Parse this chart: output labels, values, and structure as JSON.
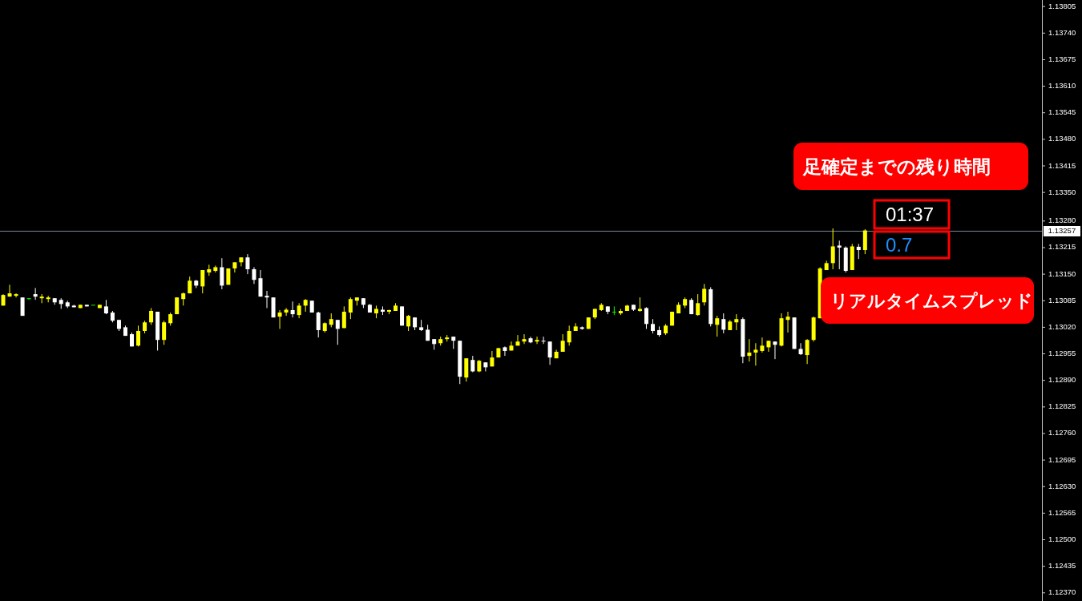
{
  "chart_data": {
    "type": "candlestick",
    "categories": [
      null,
      null,
      null,
      null,
      null,
      null,
      null,
      null,
      null,
      null,
      null,
      null,
      null,
      null,
      null,
      null,
      null,
      null,
      null,
      null,
      null,
      null,
      null,
      null,
      null,
      null,
      null,
      null,
      null,
      null,
      null,
      null,
      null,
      null,
      null,
      null,
      null,
      null,
      null,
      null,
      null,
      null,
      null,
      null,
      null,
      null,
      null,
      null,
      null,
      null,
      null,
      null,
      null,
      null,
      null,
      null,
      null,
      null,
      null,
      null,
      null,
      null,
      null,
      null,
      null,
      null,
      null,
      null,
      null,
      null,
      null,
      null,
      null,
      null,
      null,
      null,
      null,
      null,
      null,
      null,
      null,
      null,
      null,
      null,
      null,
      null,
      null,
      null,
      null,
      null,
      null,
      null,
      null,
      null,
      null,
      null,
      null,
      null,
      null,
      null,
      null,
      null,
      null,
      null,
      null,
      null,
      null,
      null,
      null,
      null,
      null,
      null,
      null,
      null,
      null,
      null,
      null,
      null,
      null,
      null,
      null,
      null,
      null,
      null,
      null,
      null,
      null,
      null,
      null,
      null,
      null,
      null,
      null,
      null,
      null,
      null,
      null,
      null,
      null,
      null,
      null,
      null,
      null,
      null,
      null,
      null,
      null,
      null,
      null,
      null,
      null,
      null,
      null,
      null,
      null,
      null,
      null,
      null,
      null,
      null,
      null,
      null
    ],
    "ohlc": [
      [
        1.13073,
        1.13101,
        1.13073,
        1.13099
      ],
      [
        1.13095,
        1.13124,
        1.13095,
        1.13103
      ],
      [
        1.13097,
        1.13103,
        1.13093,
        1.13101
      ],
      [
        1.13093,
        1.13093,
        1.13048,
        1.13048
      ],
      [
        1.13091,
        1.13091,
        1.13087,
        1.13091
      ],
      [
        1.13101,
        1.13116,
        1.13087,
        1.13095
      ],
      [
        1.13091,
        1.13101,
        1.13079,
        1.13095
      ],
      [
        1.13089,
        1.13097,
        1.13081,
        1.13093
      ],
      [
        1.13091,
        1.13091,
        1.13075,
        1.13081
      ],
      [
        1.13087,
        1.13091,
        1.13065,
        1.13077
      ],
      [
        1.13081,
        1.13085,
        1.13067,
        1.13071
      ],
      [
        1.13073,
        1.13075,
        1.13069,
        1.13069
      ],
      [
        1.13067,
        1.13075,
        1.13067,
        1.13075
      ],
      [
        1.13075,
        1.13075,
        1.13071,
        1.13071
      ],
      [
        1.13075,
        1.13075,
        1.13075,
        1.13075
      ],
      [
        1.13067,
        1.13075,
        1.13067,
        1.13075
      ],
      [
        1.13071,
        1.13087,
        1.13052,
        1.13054
      ],
      [
        1.13056,
        1.1306,
        1.13032,
        1.13036
      ],
      [
        1.13038,
        1.13038,
        1.13011,
        1.13016
      ],
      [
        1.1302,
        1.13024,
        1.12999,
        1.12999
      ],
      [
        1.13003,
        1.13007,
        1.12973,
        1.12973
      ],
      [
        1.12975,
        1.13024,
        1.12973,
        1.13011
      ],
      [
        1.13011,
        1.13036,
        1.13005,
        1.13032
      ],
      [
        1.13032,
        1.13067,
        1.13026,
        1.1306
      ],
      [
        1.13058,
        1.13058,
        1.12963,
        1.12989
      ],
      [
        1.12989,
        1.13036,
        1.12977,
        1.13032
      ],
      [
        1.1303,
        1.13056,
        1.13024,
        1.13052
      ],
      [
        1.13052,
        1.13093,
        1.13052,
        1.13093
      ],
      [
        1.13089,
        1.13105,
        1.13073,
        1.13103
      ],
      [
        1.13103,
        1.13144,
        1.13103,
        1.13134
      ],
      [
        1.13134,
        1.13136,
        1.13116,
        1.13122
      ],
      [
        1.1312,
        1.1316,
        1.13103,
        1.1316
      ],
      [
        1.13154,
        1.13173,
        1.13146,
        1.13162
      ],
      [
        1.13158,
        1.13171,
        1.13154,
        1.13167
      ],
      [
        1.13167,
        1.13189,
        1.13113,
        1.13122
      ],
      [
        1.13124,
        1.13164,
        1.13124,
        1.13164
      ],
      [
        1.13164,
        1.13179,
        1.13154,
        1.13179
      ],
      [
        1.13179,
        1.13191,
        1.13169,
        1.13191
      ],
      [
        1.13191,
        1.13199,
        1.1315,
        1.13162
      ],
      [
        1.13162,
        1.13167,
        1.13126,
        1.13136
      ],
      [
        1.1314,
        1.1316,
        1.13095,
        1.13095
      ],
      [
        1.13097,
        1.13109,
        1.13067,
        1.13093
      ],
      [
        1.13093,
        1.13093,
        1.13044,
        1.13044
      ],
      [
        1.13046,
        1.13062,
        1.13016,
        1.13056
      ],
      [
        1.13056,
        1.13067,
        1.13048,
        1.13063
      ],
      [
        1.13062,
        1.13083,
        1.13044,
        1.13052
      ],
      [
        1.1305,
        1.13079,
        1.13042,
        1.13073
      ],
      [
        1.13073,
        1.13089,
        1.13058,
        1.13087
      ],
      [
        1.13085,
        1.13085,
        1.13056,
        1.13056
      ],
      [
        1.13056,
        1.13058,
        1.12995,
        1.13013
      ],
      [
        1.13011,
        1.13032,
        1.13007,
        1.1303
      ],
      [
        1.13026,
        1.13054,
        1.1302,
        1.1304
      ],
      [
        1.13038,
        1.13038,
        1.12977,
        1.13016
      ],
      [
        1.13018,
        1.13071,
        1.13018,
        1.13058
      ],
      [
        1.13056,
        1.13093,
        1.1304,
        1.13089
      ],
      [
        1.13085,
        1.13093,
        1.13073,
        1.13093
      ],
      [
        1.13091,
        1.13091,
        1.13067,
        1.13075
      ],
      [
        1.13075,
        1.13077,
        1.13056,
        1.13056
      ],
      [
        1.13054,
        1.13073,
        1.13042,
        1.13065
      ],
      [
        1.13063,
        1.13071,
        1.1305,
        1.13058
      ],
      [
        1.13058,
        1.13063,
        1.13052,
        1.13062
      ],
      [
        1.1306,
        1.13079,
        1.1306,
        1.13073
      ],
      [
        1.13071,
        1.13071,
        1.13024,
        1.13024
      ],
      [
        1.13022,
        1.1305,
        1.13011,
        1.13048
      ],
      [
        1.13044,
        1.13044,
        1.13013,
        1.1302
      ],
      [
        1.1302,
        1.13038,
        1.13011,
        1.13013
      ],
      [
        1.13014,
        1.13026,
        1.12987,
        1.12987
      ],
      [
        1.12991,
        1.12991,
        1.12965,
        1.12979
      ],
      [
        1.12981,
        1.12997,
        1.12975,
        1.12991
      ],
      [
        1.12991,
        1.13001,
        1.12985,
        1.12995
      ],
      [
        1.12997,
        1.12997,
        1.12967,
        1.12987
      ],
      [
        1.12987,
        1.12987,
        1.12881,
        1.12899
      ],
      [
        1.12897,
        1.12944,
        1.12887,
        1.12944
      ],
      [
        1.1294,
        1.1295,
        1.1291,
        1.12912
      ],
      [
        1.12912,
        1.1294,
        1.1291,
        1.12938
      ],
      [
        1.12934,
        1.12934,
        1.12912,
        1.12922
      ],
      [
        1.12924,
        1.12962,
        1.12924,
        1.12946
      ],
      [
        1.12946,
        1.12969,
        1.12946,
        1.12969
      ],
      [
        1.12971,
        1.12973,
        1.1295,
        1.12962
      ],
      [
        1.12963,
        1.12985,
        1.12963,
        1.12975
      ],
      [
        1.12975,
        1.13001,
        1.12975,
        1.12985
      ],
      [
        1.12985,
        1.13003,
        1.12979,
        1.12991
      ],
      [
        1.12993,
        1.12997,
        1.12981,
        1.12983
      ],
      [
        1.12985,
        1.12997,
        1.12979,
        1.12989
      ],
      [
        1.12987,
        1.12997,
        1.12979,
        1.12987
      ],
      [
        1.12985,
        1.12985,
        1.12928,
        1.12946
      ],
      [
        1.12944,
        1.12965,
        1.12944,
        1.1296
      ],
      [
        1.1296,
        1.13003,
        1.1296,
        1.12987
      ],
      [
        1.12983,
        1.13024,
        1.12975,
        1.13011
      ],
      [
        1.13011,
        1.1303,
        1.13011,
        1.13022
      ],
      [
        1.1302,
        1.13022,
        1.13014,
        1.13016
      ],
      [
        1.13016,
        1.13044,
        1.13016,
        1.13044
      ],
      [
        1.13044,
        1.13065,
        1.1304,
        1.13065
      ],
      [
        1.13062,
        1.13079,
        1.1306,
        1.13075
      ],
      [
        1.13071,
        1.13071,
        1.13052,
        1.13058
      ],
      [
        1.13058,
        1.13071,
        1.1305,
        1.13058
      ],
      [
        1.13054,
        1.13065,
        1.1305,
        1.1306
      ],
      [
        1.1306,
        1.13075,
        1.1306,
        1.13073
      ],
      [
        1.13075,
        1.13075,
        1.1306,
        1.13063
      ],
      [
        1.1306,
        1.13093,
        1.13058,
        1.13065
      ],
      [
        1.13067,
        1.13069,
        1.13016,
        1.13028
      ],
      [
        1.13028,
        1.1304,
        1.13005,
        1.13011
      ],
      [
        1.13013,
        1.13022,
        1.12997,
        1.13001
      ],
      [
        1.13005,
        1.13028,
        1.13001,
        1.13024
      ],
      [
        1.13024,
        1.13058,
        1.13024,
        1.13058
      ],
      [
        1.13054,
        1.13081,
        1.13054,
        1.13075
      ],
      [
        1.13073,
        1.13093,
        1.13067,
        1.13089
      ],
      [
        1.13087,
        1.13091,
        1.13052,
        1.13052
      ],
      [
        1.1305,
        1.13101,
        1.13048,
        1.13079
      ],
      [
        1.13081,
        1.13126,
        1.13073,
        1.13114
      ],
      [
        1.13113,
        1.13118,
        1.13022,
        1.13028
      ],
      [
        1.13026,
        1.13048,
        1.12997,
        1.13042
      ],
      [
        1.1304,
        1.13054,
        1.13005,
        1.13014
      ],
      [
        1.13013,
        1.13038,
        1.13013,
        1.13034
      ],
      [
        1.13032,
        1.13052,
        1.13013,
        1.1304
      ],
      [
        1.1304,
        1.13044,
        1.12932,
        1.12948
      ],
      [
        1.1295,
        1.12991,
        1.12936,
        1.12958
      ],
      [
        1.12958,
        1.12981,
        1.12926,
        1.12965
      ],
      [
        1.12962,
        1.12995,
        1.12958,
        1.12975
      ],
      [
        1.12971,
        1.12987,
        1.1296,
        1.12987
      ],
      [
        1.12985,
        1.12985,
        1.12942,
        1.12977
      ],
      [
        1.12975,
        1.13054,
        1.12973,
        1.13042
      ],
      [
        1.13038,
        1.13058,
        1.13007,
        1.13046
      ],
      [
        1.13044,
        1.13044,
        1.12967,
        1.12967
      ],
      [
        1.12967,
        1.12981,
        1.12952,
        1.12954
      ],
      [
        1.12952,
        1.12991,
        1.1293,
        1.12989
      ],
      [
        1.12989,
        1.13046,
        1.12985,
        1.13044
      ],
      [
        1.13042,
        1.13167,
        1.13042,
        1.13164
      ],
      [
        1.1316,
        1.13183,
        1.1316,
        1.13177
      ],
      [
        1.13177,
        1.13262,
        1.13162,
        1.13218
      ],
      [
        1.1322,
        1.13232,
        1.13162,
        1.13215
      ],
      [
        1.13215,
        1.13218,
        1.13154,
        1.13158
      ],
      [
        1.1316,
        1.13224,
        1.1316,
        1.13218
      ],
      [
        1.13217,
        1.13224,
        1.13187,
        1.13209
      ],
      [
        1.13209,
        1.1326,
        1.13199,
        1.13257
      ],
      null,
      null,
      null,
      null,
      null,
      null,
      null,
      null,
      null,
      null,
      null,
      null,
      null,
      null,
      null,
      null,
      null,
      null,
      null,
      null,
      null,
      null,
      null,
      null,
      null,
      null,
      null
    ],
    "colors": [
      "#ffff00",
      "#ffff00",
      "#ffff00",
      "#ffffff",
      "#00ff00",
      "#ffffff",
      "#ffff00",
      "#ffff00",
      "#ffffff",
      "#ffffff",
      "#ffffff",
      "#ffffff",
      "#ffff00",
      "#ffffff",
      "#00ff00",
      "#ffff00",
      "#ffffff",
      "#ffffff",
      "#ffffff",
      "#ffffff",
      "#ffffff",
      "#ffff00",
      "#ffff00",
      "#ffff00",
      "#ffffff",
      "#ffff00",
      "#ffff00",
      "#ffff00",
      "#ffff00",
      "#ffff00",
      "#ffffff",
      "#ffff00",
      "#ffff00",
      "#ffff00",
      "#ffffff",
      "#ffff00",
      "#ffff00",
      "#ffff00",
      "#ffffff",
      "#ffffff",
      "#ffffff",
      "#ffffff",
      "#ffffff",
      "#ffff00",
      "#ffff00",
      "#ffffff",
      "#ffff00",
      "#ffff00",
      "#ffffff",
      "#ffffff",
      "#ffff00",
      "#ffff00",
      "#ffffff",
      "#ffff00",
      "#ffff00",
      "#ffff00",
      "#ffffff",
      "#ffffff",
      "#ffff00",
      "#ffffff",
      "#ffff00",
      "#ffff00",
      "#ffffff",
      "#ffff00",
      "#ffffff",
      "#ffffff",
      "#ffffff",
      "#ffffff",
      "#ffff00",
      "#ffff00",
      "#ffffff",
      "#ffffff",
      "#ffff00",
      "#ffffff",
      "#ffff00",
      "#ffffff",
      "#ffff00",
      "#ffff00",
      "#ffffff",
      "#ffff00",
      "#ffff00",
      "#ffff00",
      "#ffffff",
      "#ffff00",
      "#ffffff",
      "#ffffff",
      "#ffff00",
      "#ffff00",
      "#ffff00",
      "#ffff00",
      "#ffffff",
      "#ffff00",
      "#ffff00",
      "#ffff00",
      "#ffffff",
      "#00ff00",
      "#ffff00",
      "#ffff00",
      "#ffffff",
      "#ffff00",
      "#ffffff",
      "#ffffff",
      "#ffffff",
      "#ffff00",
      "#ffff00",
      "#ffff00",
      "#ffff00",
      "#ffffff",
      "#ffff00",
      "#ffff00",
      "#ffffff",
      "#ffff00",
      "#ffffff",
      "#ffff00",
      "#ffff00",
      "#ffffff",
      "#ffff00",
      "#ffff00",
      "#ffff00",
      "#ffff00",
      "#ffffff",
      "#ffff00",
      "#ffff00",
      "#ffffff",
      "#ffffff",
      "#ffff00",
      "#ffff00",
      "#ffff00",
      "#ffff00",
      "#ffff00",
      "#ffffff",
      "#ffffff",
      "#ffff00",
      "#ffffff",
      "#ffff00",
      null,
      null,
      null,
      null,
      null,
      null,
      null,
      null,
      null,
      null,
      null,
      null,
      null,
      null,
      null,
      null,
      null,
      null,
      null,
      null,
      null,
      null,
      null,
      null,
      null,
      null,
      null
    ],
    "ylim": [
      1.1235,
      1.13821
    ],
    "yticks": [
      1.13805,
      {
        "value": 1.1374,
        "label": "1.13740"
      },
      1.13675,
      {
        "value": 1.1361,
        "label": "1.13610"
      },
      1.13545,
      {
        "value": 1.1348,
        "label": "1.13480"
      },
      1.13415,
      {
        "value": 1.1335,
        "label": "1.13350"
      },
      {
        "value": 1.1328,
        "label": "1.13280"
      },
      1.13215,
      {
        "value": 1.1315,
        "label": "1.13150"
      },
      1.13085,
      {
        "value": 1.1302,
        "label": "1.13020"
      },
      1.12955,
      {
        "value": 1.1289,
        "label": "1.12890"
      },
      1.12825,
      {
        "value": 1.1276,
        "label": "1.12760"
      },
      1.12695,
      {
        "value": 1.1263,
        "label": "1.12630"
      },
      1.12565,
      {
        "value": 1.125,
        "label": "1.12500"
      },
      1.12435,
      {
        "value": 1.1237,
        "label": "1.12370"
      }
    ],
    "tick_labels": "y",
    "ref_lines": [
      {
        "axis": "y",
        "value": 1.13257,
        "label": "1.13257",
        "color": "#778899"
      }
    ],
    "annotations": [
      "足確定までの残り時間",
      "01:37",
      "0.7",
      "リアルタイムスプレッド"
    ]
  }
}
